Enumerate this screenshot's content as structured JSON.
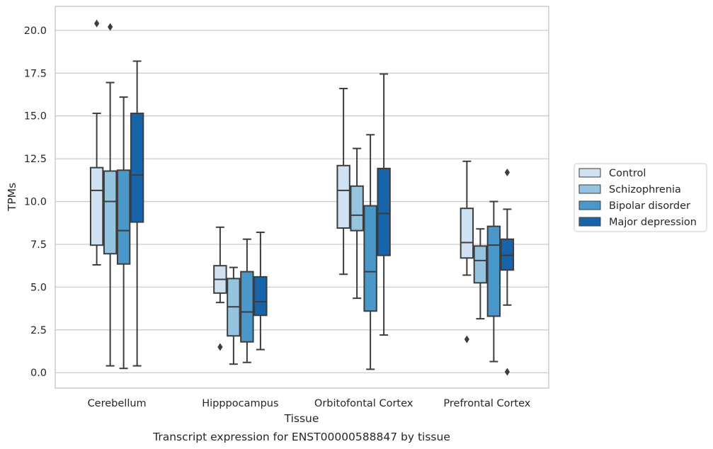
{
  "chart_data": {
    "type": "boxplot",
    "caption": "Transcript expression for ENST00000588847 by tissue",
    "xlabel": "Tissue",
    "ylabel": "TPMs",
    "ylim": [
      -0.9,
      21.4
    ],
    "yticks": [
      0.0,
      2.5,
      5.0,
      7.5,
      10.0,
      12.5,
      15.0,
      17.5,
      20.0
    ],
    "ytick_labels": [
      "0.0",
      "2.5",
      "5.0",
      "7.5",
      "10.0",
      "12.5",
      "15.0",
      "17.5",
      "20.0"
    ],
    "grid": "horizontal",
    "legend_position": "right",
    "categories": [
      "Cerebellum",
      "Hipppocampus",
      "Orbitofontal Cortex",
      "Prefrontal Cortex"
    ],
    "series": [
      {
        "name": "Control",
        "color": "#d0e1f2",
        "boxes": [
          {
            "whislo": 6.3,
            "q1": 7.45,
            "med": 10.65,
            "q3": 11.98,
            "whishi": 15.15,
            "fliers": [
              20.4
            ]
          },
          {
            "whislo": 4.1,
            "q1": 4.65,
            "med": 5.45,
            "q3": 6.25,
            "whishi": 8.5,
            "fliers": [
              1.5
            ]
          },
          {
            "whislo": 5.75,
            "q1": 8.45,
            "med": 10.65,
            "q3": 12.1,
            "whishi": 16.6,
            "fliers": []
          },
          {
            "whislo": 5.7,
            "q1": 6.7,
            "med": 7.6,
            "q3": 9.6,
            "whishi": 12.35,
            "fliers": [
              1.95
            ]
          }
        ]
      },
      {
        "name": "Schizophrenia",
        "color": "#94c4df",
        "boxes": [
          {
            "whislo": 0.4,
            "q1": 6.95,
            "med": 10.0,
            "q3": 11.78,
            "whishi": 16.95,
            "fliers": [
              20.2
            ]
          },
          {
            "whislo": 0.5,
            "q1": 2.15,
            "med": 3.85,
            "q3": 5.5,
            "whishi": 6.15,
            "fliers": []
          },
          {
            "whislo": 4.35,
            "q1": 8.3,
            "med": 9.2,
            "q3": 10.9,
            "whishi": 13.1,
            "fliers": []
          },
          {
            "whislo": 3.15,
            "q1": 5.25,
            "med": 6.55,
            "q3": 7.4,
            "whishi": 8.4,
            "fliers": []
          }
        ]
      },
      {
        "name": "Bipolar disorder",
        "color": "#4a98c9",
        "boxes": [
          {
            "whislo": 0.25,
            "q1": 6.35,
            "med": 8.3,
            "q3": 11.83,
            "whishi": 16.1,
            "fliers": []
          },
          {
            "whislo": 0.6,
            "q1": 1.8,
            "med": 3.55,
            "q3": 5.9,
            "whishi": 7.8,
            "fliers": []
          },
          {
            "whislo": 0.2,
            "q1": 3.6,
            "med": 5.9,
            "q3": 9.75,
            "whishi": 13.9,
            "fliers": []
          },
          {
            "whislo": 0.65,
            "q1": 3.3,
            "med": 7.45,
            "q3": 8.55,
            "whishi": 10.0,
            "fliers": []
          }
        ]
      },
      {
        "name": "Major depression",
        "color": "#1764ab",
        "boxes": [
          {
            "whislo": 0.4,
            "q1": 8.8,
            "med": 11.55,
            "q3": 15.15,
            "whishi": 18.2,
            "fliers": []
          },
          {
            "whislo": 1.35,
            "q1": 3.35,
            "med": 4.15,
            "q3": 5.6,
            "whishi": 8.2,
            "fliers": []
          },
          {
            "whislo": 2.2,
            "q1": 6.85,
            "med": 9.3,
            "q3": 11.93,
            "whishi": 17.45,
            "fliers": []
          },
          {
            "whislo": 3.95,
            "q1": 6.0,
            "med": 6.85,
            "q3": 7.8,
            "whishi": 9.55,
            "fliers": [
              0.05,
              11.7
            ]
          }
        ]
      }
    ]
  }
}
